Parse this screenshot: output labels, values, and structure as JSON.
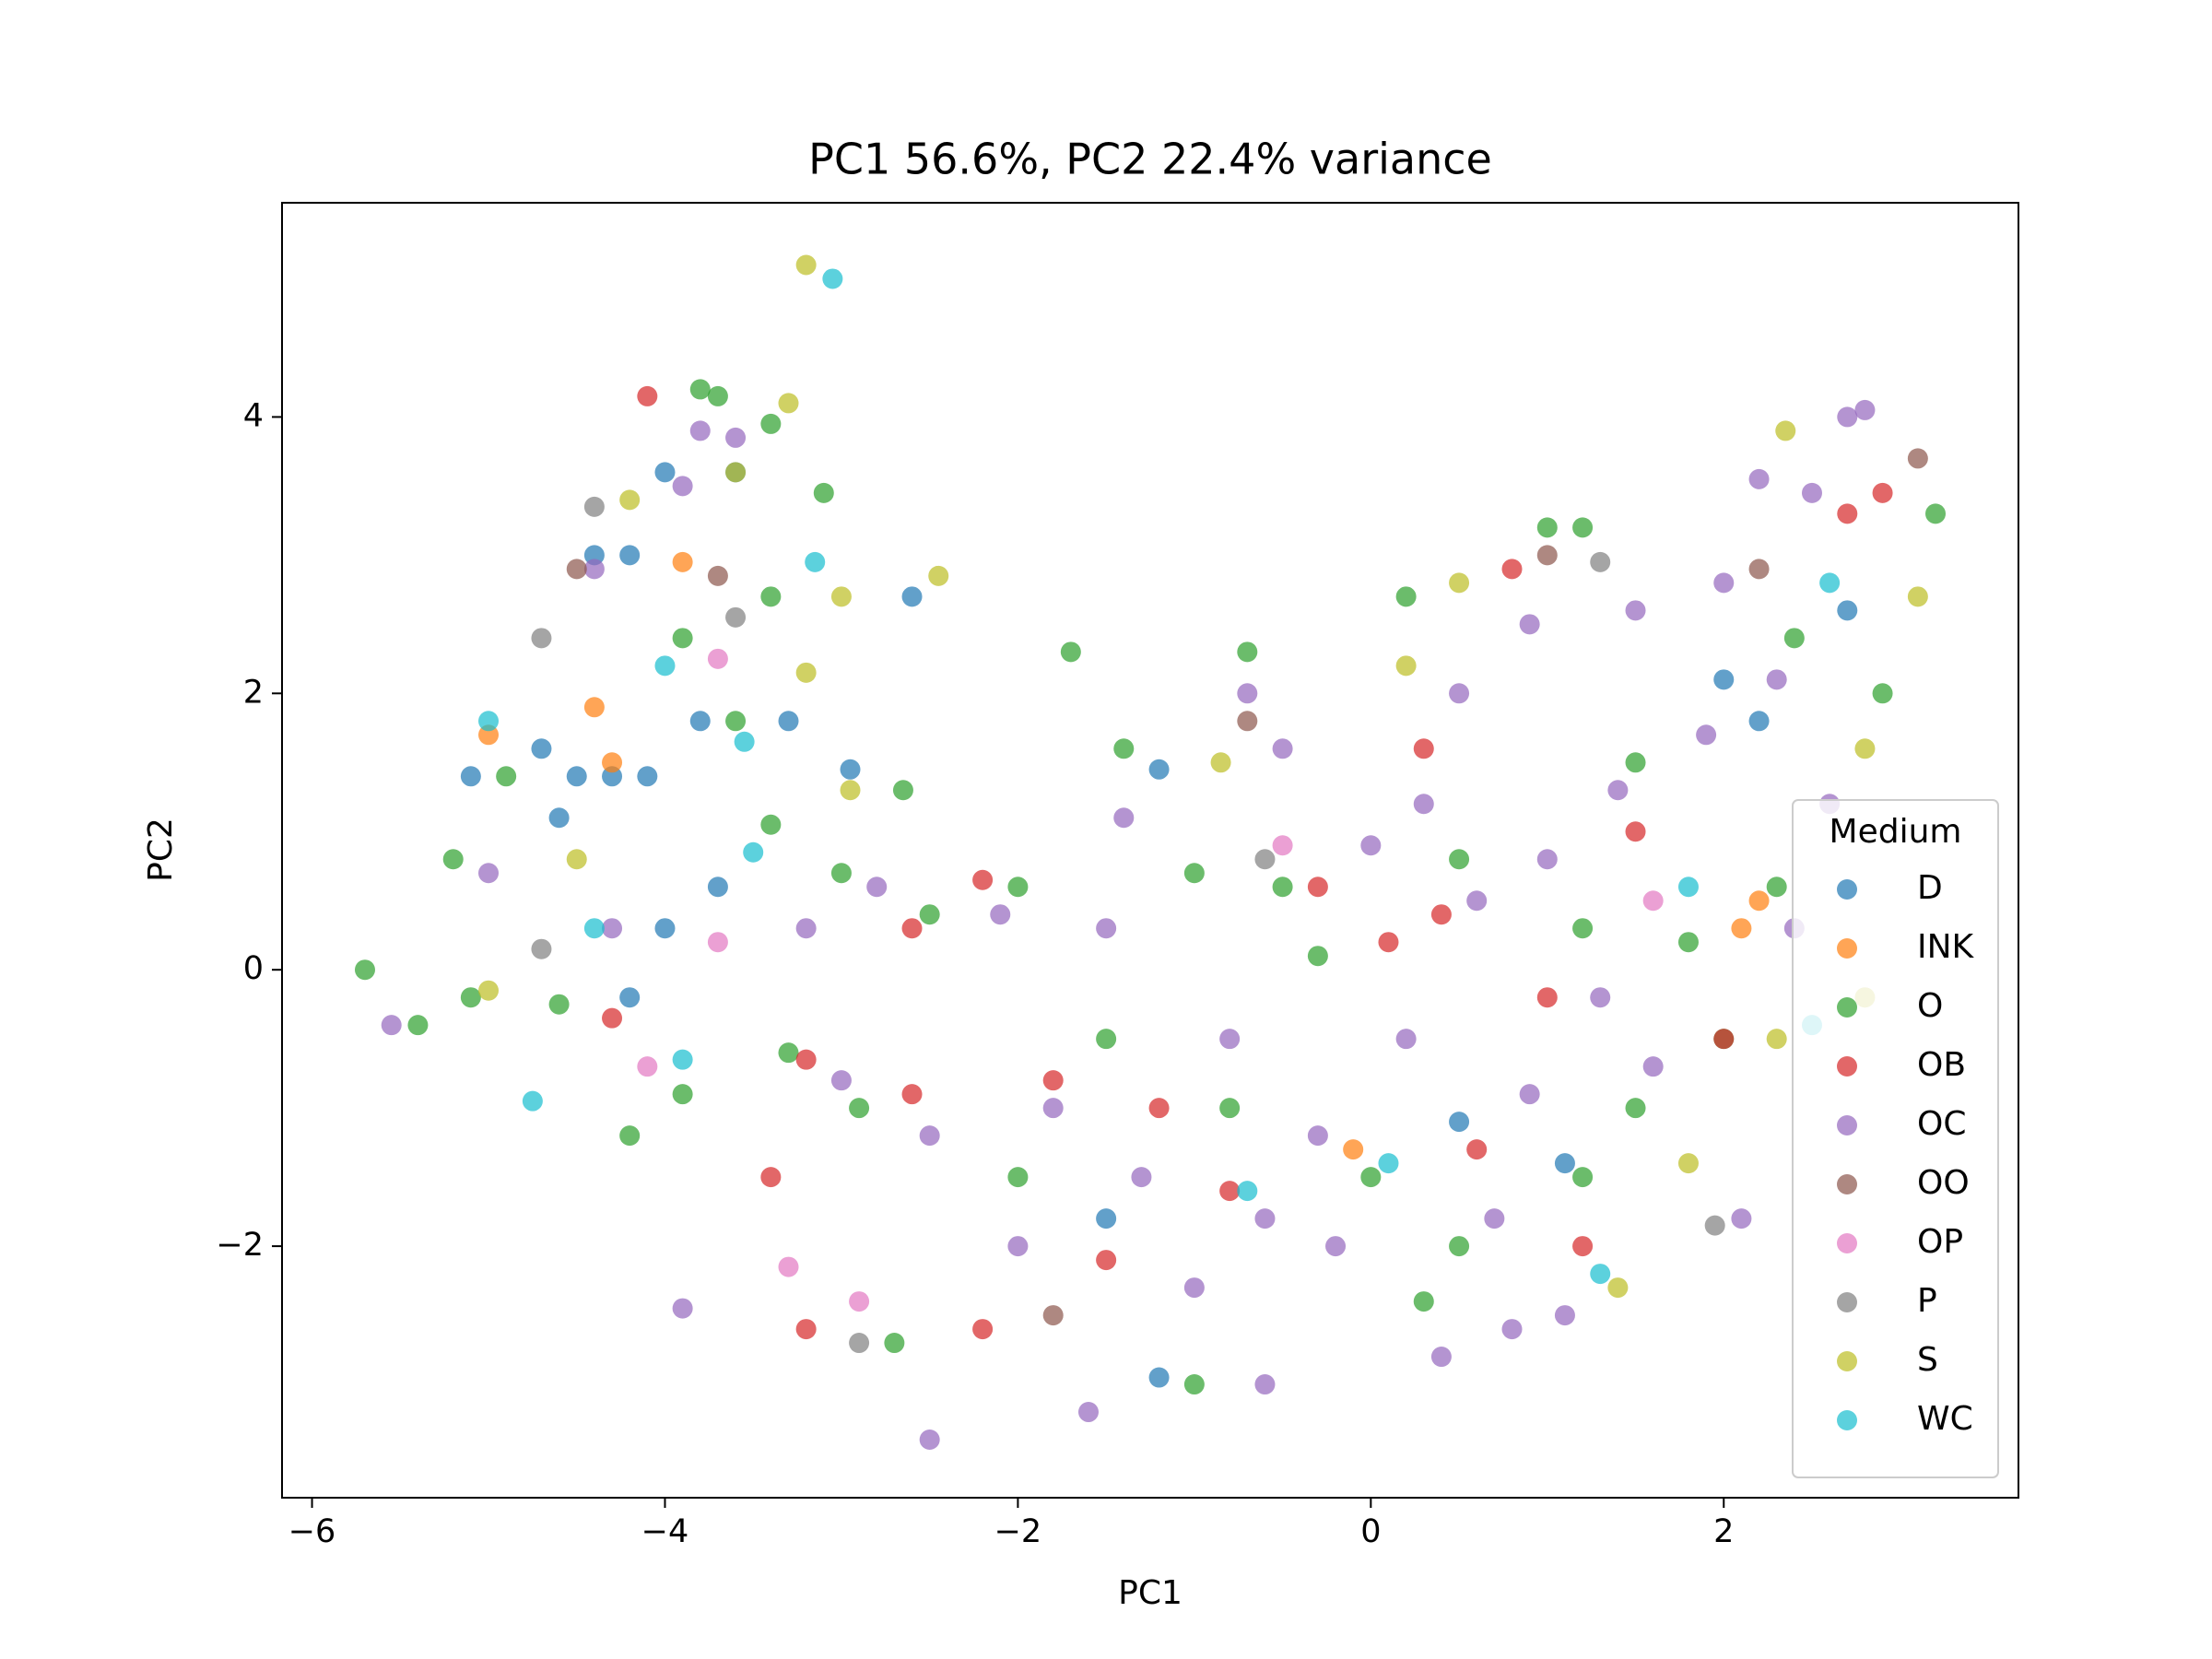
{
  "chart_data": {
    "type": "scatter",
    "title": "PC1 56.6%, PC2 22.4% variance",
    "x_label": "PC1",
    "y_label": "PC2",
    "xlim": [
      -6.17,
      3.67
    ],
    "ylim": [
      -3.82,
      5.55
    ],
    "xticks": [
      {
        "value": -6,
        "label": "−6"
      },
      {
        "value": -4,
        "label": "−4"
      },
      {
        "value": -2,
        "label": "−2"
      },
      0,
      2
    ],
    "yticks": [
      {
        "value": -2,
        "label": "−2"
      },
      0,
      2,
      4
    ],
    "grid": false,
    "legend_title": "Medium",
    "legend_loc": "lower right",
    "alpha": 0.7,
    "series": [
      {
        "name": "D",
        "color": "#1f77b4",
        "x": [
          -4.2,
          -4.4,
          -4.0,
          -3.6,
          -2.6,
          -4.5,
          -4.7,
          -4.3,
          -4.1,
          -5.1,
          -4.0,
          -4.2,
          -3.8,
          -3.3,
          -1.2,
          -2.95,
          -1.2,
          2.0,
          2.2,
          1.1,
          -1.5,
          2.7,
          -3.7,
          -4.6,
          0.5
        ],
        "values": [
          3.0,
          3.0,
          3.6,
          3.6,
          2.7,
          1.4,
          1.6,
          1.4,
          1.4,
          1.4,
          0.3,
          -0.2,
          1.8,
          1.8,
          1.45,
          1.45,
          -2.95,
          2.1,
          1.8,
          -1.4,
          -1.8,
          2.6,
          0.6,
          1.1,
          -1.1
        ]
      },
      {
        "name": "INK",
        "color": "#ff7f0e",
        "x": [
          -4.4,
          -5.0,
          -4.3,
          -0.1,
          2.1,
          -3.9,
          2.2
        ],
        "values": [
          1.9,
          1.7,
          1.5,
          -1.3,
          0.3,
          2.95,
          0.5
        ]
      },
      {
        "name": "O",
        "color": "#2ca02c",
        "x": [
          -5.7,
          -5.4,
          -5.1,
          -5.2,
          -4.9,
          -4.6,
          -4.2,
          -3.9,
          -3.8,
          -3.7,
          -3.4,
          -3.1,
          -3.4,
          -3.9,
          -3.6,
          -3.4,
          -2.65,
          -1.7,
          -0.7,
          -1.4,
          1.0,
          1.2,
          0.2,
          3.2,
          2.9,
          2.4,
          1.5,
          0.5,
          -0.5,
          -1.0,
          -2.0,
          -2.5,
          -1.5,
          -0.8,
          0,
          0.5,
          1.2,
          -2.0,
          -2.7,
          -1.0,
          0.3,
          1.5,
          2.0,
          2.3,
          1.8,
          -0.3,
          -3.0,
          -2.9,
          -3.3,
          1.2
        ],
        "values": [
          0,
          -0.4,
          -0.2,
          0.8,
          1.4,
          -0.25,
          -1.2,
          -0.9,
          4.2,
          4.15,
          3.95,
          3.45,
          2.7,
          2.4,
          1.8,
          1.05,
          1.3,
          2.3,
          2.3,
          1.6,
          3.2,
          3.2,
          2.7,
          3.3,
          2.0,
          2.4,
          1.5,
          0.8,
          0.6,
          0.7,
          0.6,
          0.4,
          -0.5,
          -1.0,
          -1.5,
          -2.0,
          -1.5,
          -1.5,
          -2.7,
          -3.0,
          -2.4,
          -1.0,
          -0.5,
          0.6,
          0.2,
          0.1,
          0.7,
          -1.0,
          -0.6,
          0.3
        ]
      },
      {
        "name": "OB",
        "color": "#d62728",
        "x": [
          -4.1,
          -4.3,
          -3.4,
          -3.2,
          -2.6,
          -2.2,
          -1.8,
          -1.2,
          -0.8,
          -0.3,
          0.1,
          0.3,
          0.8,
          0.6,
          1.0,
          1.5,
          2.7,
          2.9,
          2.0,
          -3.2,
          -2.2,
          -1.5,
          0.4,
          1.2,
          -2.6
        ],
        "values": [
          4.15,
          -0.35,
          -1.5,
          -0.65,
          0.3,
          0.65,
          -0.8,
          -1.0,
          -1.6,
          0.6,
          0.2,
          1.6,
          2.9,
          -1.3,
          -0.2,
          1.0,
          3.3,
          3.45,
          -0.5,
          -2.6,
          -2.6,
          -2.1,
          0.4,
          -2.0,
          -0.9
        ]
      },
      {
        "name": "OC",
        "color": "#9467bd",
        "x": [
          -5.55,
          -3.9,
          -2.5,
          -1.6,
          -0.6,
          0.4,
          0.8,
          1.1,
          2.8,
          2.7,
          2.2,
          2.5,
          2.0,
          1.5,
          0.9,
          0.5,
          -0.7,
          -0.5,
          -1.4,
          -2.1,
          -2.8,
          -3.2,
          -4.3,
          -4.4,
          -3.9,
          -3.8,
          -3.6,
          -5.0,
          -1.8,
          -1.3,
          -0.8,
          -0.3,
          0.2,
          0.6,
          1.0,
          1.4,
          1.9,
          2.3,
          2.6,
          0.7,
          -0.2,
          -1.0,
          -2.0,
          -2.5,
          -3.0,
          1.6,
          2.1,
          0.0,
          -1.5,
          0.9,
          1.3,
          -0.6,
          2.4,
          0.3
        ],
        "values": [
          -0.4,
          -2.45,
          -3.4,
          -3.2,
          -3.0,
          -2.8,
          -2.6,
          -2.5,
          4.05,
          4.0,
          3.55,
          3.45,
          2.8,
          2.6,
          2.5,
          2.0,
          2.0,
          1.6,
          1.1,
          0.4,
          0.6,
          0.3,
          0.3,
          2.9,
          3.5,
          3.9,
          3.85,
          0.7,
          -1.0,
          -1.5,
          -0.5,
          -1.2,
          -0.5,
          0.5,
          0.8,
          1.3,
          1.7,
          2.1,
          1.2,
          -1.8,
          -2.0,
          -2.3,
          -2.0,
          -1.2,
          -0.8,
          -0.7,
          -1.8,
          0.9,
          0.3,
          -0.9,
          -0.2,
          -1.8,
          0.3,
          1.2
        ]
      },
      {
        "name": "OO",
        "color": "#8c564b",
        "x": [
          -0.7,
          1.0,
          3.1,
          2.2,
          -3.7,
          -4.5,
          -1.8
        ],
        "values": [
          1.8,
          3.0,
          3.7,
          2.9,
          2.85,
          2.9,
          -2.5
        ]
      },
      {
        "name": "OP",
        "color": "#e377c2",
        "x": [
          -3.7,
          -3.7,
          -3.3,
          -4.1,
          -0.5,
          1.6,
          -2.9
        ],
        "values": [
          2.25,
          0.2,
          -2.15,
          -0.7,
          0.9,
          0.5,
          -2.4
        ]
      },
      {
        "name": "P",
        "color": "#7f7f7f",
        "x": [
          -4.4,
          -4.7,
          -3.6,
          -4.7,
          -0.6,
          1.3,
          -2.9,
          1.95
        ],
        "values": [
          3.35,
          2.4,
          2.55,
          0.15,
          0.8,
          2.95,
          -2.7,
          -1.85
        ]
      },
      {
        "name": "S",
        "color": "#bcbd22",
        "x": [
          -3.2,
          -3.3,
          -3.6,
          -3.0,
          -2.45,
          -3.2,
          -2.95,
          -5.0,
          -4.2,
          2.35,
          3.1,
          2.8,
          2.3,
          1.8,
          1.4,
          0.5,
          0.2,
          -0.85,
          2.8,
          -4.5
        ],
        "values": [
          5.1,
          4.1,
          3.6,
          2.7,
          2.85,
          2.15,
          1.3,
          -0.15,
          3.4,
          3.9,
          2.7,
          1.6,
          -0.5,
          -1.4,
          -2.3,
          2.8,
          2.2,
          1.5,
          -0.2,
          0.8
        ]
      },
      {
        "name": "WC",
        "color": "#17becf",
        "x": [
          -3.05,
          -3.15,
          -4.75,
          -3.9,
          -3.55,
          -3.5,
          -4.4,
          -5.0,
          -4.0,
          2.6,
          1.3,
          -0.7,
          0.1,
          2.5,
          1.8
        ],
        "values": [
          5.0,
          2.95,
          -0.95,
          -0.65,
          1.65,
          0.85,
          0.3,
          1.8,
          2.2,
          2.8,
          -2.2,
          -1.6,
          -1.4,
          -0.4,
          0.6
        ]
      }
    ]
  }
}
